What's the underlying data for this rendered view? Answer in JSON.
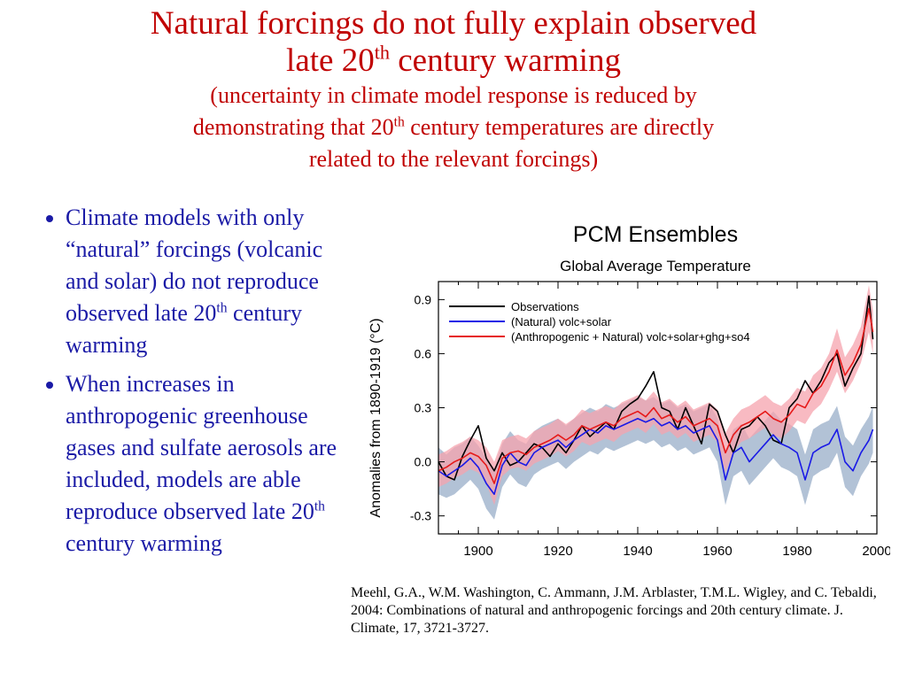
{
  "title": {
    "line1": "Natural forcings do not fully explain observed",
    "line2_pre": "late 20",
    "line2_sup": "th",
    "line2_post": " century warming",
    "sub_line1": "(uncertainty in climate model response is reduced by",
    "sub_line2_pre": "demonstrating that 20",
    "sub_line2_sup": "th",
    "sub_line2_post": " century temperatures are directly",
    "sub_line3": "related to the relevant forcings)"
  },
  "bullets": [
    {
      "pre": "Climate models with only “natural” forcings (volcanic and solar) do not reproduce observed late 20",
      "sup": "th",
      "post": " century warming"
    },
    {
      "pre": "When increases in anthropogenic greenhouse gases and sulfate aerosols are included, models are able reproduce observed late 20",
      "sup": "th",
      "post": " century warming"
    }
  ],
  "citation": "Meehl, G.A., W.M. Washington, C. Ammann, J.M. Arblaster, T.M.L. Wigley, and C. Tebaldi, 2004:  Combinations of natural and anthropogenic forcings and 20th century climate.  J. Climate, 17, 3721-3727.",
  "colors": {
    "title": "#c00000",
    "bullets": "#1a1aa6",
    "observations": "#000000",
    "natural": "#1a1ae6",
    "natural_band": "#9fb3cc",
    "anthro": "#e61a1a",
    "anthro_band": "#f5a3ad"
  },
  "chart_data": {
    "type": "line",
    "title": "PCM Ensembles",
    "subtitle": "Global Average Temperature",
    "xlabel": "",
    "ylabel": "Anomalies from 1890-1919 (°C)",
    "xlim": [
      1890,
      2000
    ],
    "ylim": [
      -0.4,
      1.0
    ],
    "x_ticks": [
      1900,
      1920,
      1940,
      1960,
      1980,
      2000
    ],
    "y_ticks": [
      -0.3,
      0.0,
      0.3,
      0.6,
      0.9
    ],
    "y_tick_labels": [
      "-0.3",
      "0.0",
      "0.3",
      "0.6",
      "0.9"
    ],
    "legend_position": "top-left",
    "grid": false,
    "x": [
      1890,
      1892,
      1894,
      1896,
      1898,
      1900,
      1902,
      1904,
      1906,
      1908,
      1910,
      1912,
      1914,
      1916,
      1918,
      1920,
      1922,
      1924,
      1926,
      1928,
      1930,
      1932,
      1934,
      1936,
      1938,
      1940,
      1942,
      1944,
      1946,
      1948,
      1950,
      1952,
      1954,
      1956,
      1958,
      1960,
      1962,
      1964,
      1966,
      1968,
      1970,
      1972,
      1974,
      1976,
      1978,
      1980,
      1982,
      1984,
      1986,
      1988,
      1990,
      1992,
      1994,
      1996,
      1998,
      1999
    ],
    "series": [
      {
        "name": "Observations",
        "values": [
          0.0,
          -0.08,
          -0.1,
          0.03,
          0.12,
          0.2,
          0.02,
          -0.05,
          0.05,
          -0.02,
          0.0,
          0.05,
          0.1,
          0.08,
          0.03,
          0.1,
          0.05,
          0.12,
          0.2,
          0.14,
          0.18,
          0.22,
          0.18,
          0.28,
          0.32,
          0.35,
          0.42,
          0.5,
          0.3,
          0.28,
          0.18,
          0.3,
          0.2,
          0.1,
          0.32,
          0.28,
          0.15,
          0.05,
          0.18,
          0.2,
          0.25,
          0.2,
          0.12,
          0.1,
          0.3,
          0.35,
          0.45,
          0.38,
          0.45,
          0.55,
          0.6,
          0.42,
          0.52,
          0.6,
          0.92,
          0.68
        ]
      },
      {
        "name": "(Natural) volc+solar",
        "values": [
          -0.05,
          -0.08,
          -0.05,
          -0.02,
          0.02,
          -0.03,
          -0.12,
          -0.18,
          -0.02,
          0.05,
          0.0,
          -0.02,
          0.05,
          0.08,
          0.1,
          0.12,
          0.08,
          0.12,
          0.15,
          0.18,
          0.16,
          0.2,
          0.18,
          0.2,
          0.22,
          0.24,
          0.22,
          0.24,
          0.2,
          0.22,
          0.18,
          0.2,
          0.16,
          0.18,
          0.2,
          0.12,
          -0.1,
          0.05,
          0.08,
          0.0,
          0.05,
          0.1,
          0.15,
          0.1,
          0.08,
          0.05,
          -0.1,
          0.05,
          0.08,
          0.1,
          0.18,
          0.0,
          -0.05,
          0.05,
          0.12,
          0.18
        ]
      },
      {
        "name": "(Anthropogenic + Natural) volc+solar+ghg+so4",
        "values": [
          -0.05,
          -0.03,
          0.0,
          0.02,
          0.05,
          0.03,
          -0.02,
          -0.12,
          0.02,
          0.05,
          0.06,
          0.04,
          0.08,
          0.1,
          0.12,
          0.15,
          0.12,
          0.15,
          0.2,
          0.18,
          0.2,
          0.22,
          0.2,
          0.24,
          0.26,
          0.28,
          0.25,
          0.3,
          0.24,
          0.26,
          0.22,
          0.25,
          0.2,
          0.22,
          0.24,
          0.2,
          0.05,
          0.15,
          0.2,
          0.22,
          0.25,
          0.28,
          0.24,
          0.22,
          0.26,
          0.32,
          0.3,
          0.38,
          0.42,
          0.5,
          0.62,
          0.48,
          0.55,
          0.65,
          0.85,
          0.72
        ]
      }
    ],
    "bands": [
      {
        "series": "(Natural) volc+solar",
        "lower": [
          -0.18,
          -0.2,
          -0.18,
          -0.14,
          -0.1,
          -0.15,
          -0.26,
          -0.32,
          -0.14,
          -0.07,
          -0.12,
          -0.14,
          -0.07,
          -0.04,
          -0.02,
          0.0,
          -0.04,
          0.0,
          0.03,
          0.06,
          0.04,
          0.08,
          0.06,
          0.08,
          0.1,
          0.12,
          0.1,
          0.12,
          0.08,
          0.1,
          0.06,
          0.08,
          0.04,
          0.06,
          0.08,
          0.0,
          -0.24,
          -0.08,
          -0.05,
          -0.13,
          -0.08,
          -0.03,
          0.02,
          -0.03,
          -0.05,
          -0.08,
          -0.24,
          -0.08,
          -0.05,
          -0.03,
          0.05,
          -0.14,
          -0.19,
          -0.08,
          -0.01,
          0.05
        ],
        "upper": [
          0.08,
          0.04,
          0.08,
          0.1,
          0.14,
          0.09,
          0.02,
          -0.04,
          0.1,
          0.17,
          0.12,
          0.1,
          0.17,
          0.2,
          0.22,
          0.24,
          0.2,
          0.24,
          0.27,
          0.3,
          0.28,
          0.32,
          0.3,
          0.32,
          0.34,
          0.36,
          0.34,
          0.36,
          0.32,
          0.34,
          0.3,
          0.32,
          0.28,
          0.3,
          0.32,
          0.24,
          0.04,
          0.18,
          0.21,
          0.13,
          0.18,
          0.23,
          0.28,
          0.23,
          0.21,
          0.18,
          0.04,
          0.18,
          0.21,
          0.23,
          0.31,
          0.14,
          0.09,
          0.18,
          0.25,
          0.31
        ]
      },
      {
        "series": "(Anthropogenic + Natural) volc+solar+ghg+so4",
        "lower": [
          -0.14,
          -0.12,
          -0.09,
          -0.07,
          -0.04,
          -0.06,
          -0.12,
          -0.24,
          -0.08,
          -0.04,
          -0.03,
          -0.05,
          -0.01,
          0.01,
          0.03,
          0.06,
          0.03,
          0.06,
          0.11,
          0.09,
          0.11,
          0.13,
          0.11,
          0.15,
          0.17,
          0.19,
          0.16,
          0.21,
          0.15,
          0.17,
          0.13,
          0.16,
          0.11,
          0.13,
          0.15,
          0.11,
          -0.06,
          0.06,
          0.11,
          0.13,
          0.16,
          0.19,
          0.15,
          0.13,
          0.17,
          0.23,
          0.21,
          0.28,
          0.32,
          0.4,
          0.5,
          0.38,
          0.45,
          0.55,
          0.72,
          0.6
        ],
        "upper": [
          0.04,
          0.06,
          0.09,
          0.11,
          0.14,
          0.12,
          0.08,
          0.0,
          0.12,
          0.14,
          0.15,
          0.13,
          0.17,
          0.19,
          0.21,
          0.24,
          0.21,
          0.24,
          0.29,
          0.27,
          0.29,
          0.31,
          0.29,
          0.33,
          0.35,
          0.37,
          0.34,
          0.39,
          0.33,
          0.35,
          0.31,
          0.34,
          0.29,
          0.31,
          0.33,
          0.29,
          0.16,
          0.24,
          0.29,
          0.31,
          0.34,
          0.37,
          0.33,
          0.31,
          0.35,
          0.41,
          0.39,
          0.48,
          0.52,
          0.6,
          0.74,
          0.58,
          0.65,
          0.75,
          0.98,
          0.84
        ]
      }
    ]
  }
}
